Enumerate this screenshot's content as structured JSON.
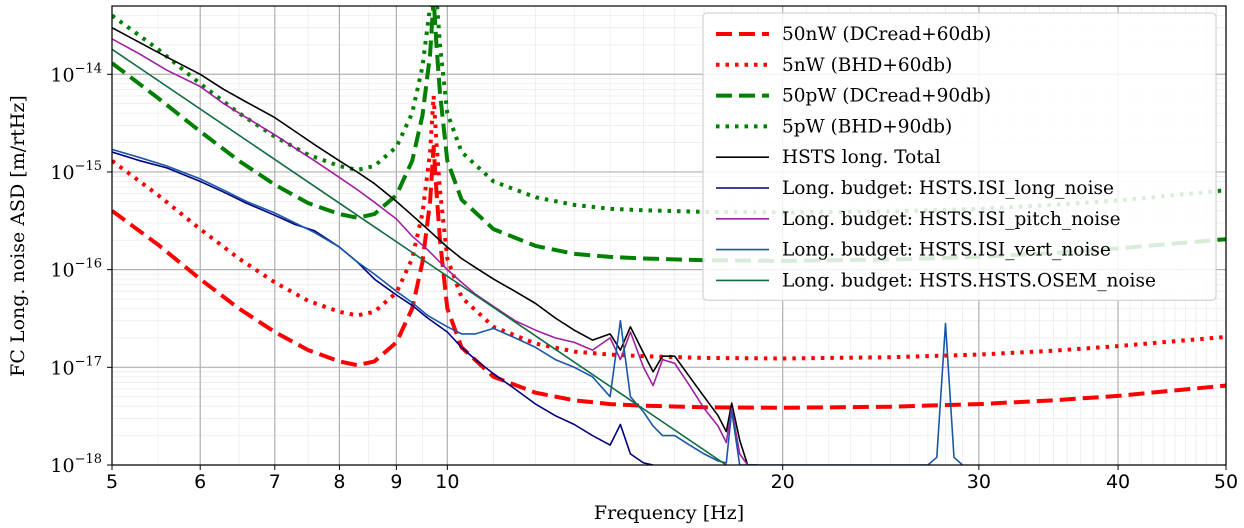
{
  "chart_data": {
    "type": "line",
    "xlabel": "Frequency [Hz]",
    "ylabel": "FC Long. noise ASD [m/rtHz]",
    "xscale": "log",
    "yscale": "log",
    "xlim": [
      5,
      50
    ],
    "ylim": [
      1e-18,
      5e-14
    ],
    "grid": true,
    "legend_position": "top-right",
    "x_ticks": [
      {
        "value": 5,
        "label": "5"
      },
      {
        "value": 6,
        "label": "6"
      },
      {
        "value": 7,
        "label": "7"
      },
      {
        "value": 8,
        "label": "8"
      },
      {
        "value": 9,
        "label": "9"
      },
      {
        "value": 10,
        "label": "10"
      },
      {
        "value": 20,
        "label": "20"
      },
      {
        "value": 30,
        "label": "30"
      },
      {
        "value": 40,
        "label": "40"
      },
      {
        "value": 50,
        "label": "50"
      }
    ],
    "y_ticks": [
      {
        "value": 1e-18,
        "base": "10",
        "exp": "−18"
      },
      {
        "value": 1e-17,
        "base": "10",
        "exp": "−17"
      },
      {
        "value": 1e-16,
        "base": "10",
        "exp": "−16"
      },
      {
        "value": 1e-15,
        "base": "10",
        "exp": "−15"
      },
      {
        "value": 1e-14,
        "base": "10",
        "exp": "−14"
      }
    ],
    "series": [
      {
        "name": "50nW (DCread+60db)",
        "color": "#ff0000",
        "style": "dashed",
        "width": 4,
        "x": [
          5,
          5.5,
          6,
          6.5,
          7,
          7.5,
          8,
          8.3,
          8.6,
          9,
          9.3,
          9.5,
          9.65,
          9.72,
          9.78,
          9.85,
          10,
          10.3,
          11,
          12,
          13,
          14,
          15,
          17,
          20,
          25,
          30,
          35,
          40,
          45,
          50
        ],
        "y": [
          4e-16,
          1.8e-16,
          8e-17,
          4e-17,
          2.3e-17,
          1.5e-17,
          1.15e-17,
          1.05e-17,
          1.15e-17,
          1.8e-17,
          4e-17,
          1.2e-16,
          5e-16,
          1.8e-15,
          6e-16,
          2e-16,
          4e-17,
          1.6e-17,
          8e-18,
          5.5e-18,
          4.6e-18,
          4.2e-18,
          4.05e-18,
          3.9e-18,
          3.85e-18,
          3.95e-18,
          4.2e-18,
          4.6e-18,
          5.1e-18,
          5.8e-18,
          6.5e-18
        ]
      },
      {
        "name": "5nW (BHD+60db)",
        "color": "#ff0000",
        "style": "dotted",
        "width": 4,
        "x": [
          5,
          5.5,
          6,
          6.5,
          7,
          7.5,
          8,
          8.3,
          8.6,
          9,
          9.3,
          9.5,
          9.65,
          9.72,
          9.78,
          9.85,
          10,
          10.3,
          11,
          12,
          13,
          14,
          15,
          17,
          20,
          25,
          30,
          35,
          40,
          45,
          50
        ],
        "y": [
          1.3e-15,
          5.8e-16,
          2.6e-16,
          1.3e-16,
          7.4e-17,
          4.8e-17,
          3.7e-17,
          3.4e-17,
          3.7e-17,
          5.8e-17,
          1.3e-16,
          3.8e-16,
          1.6e-15,
          6e-15,
          1.9e-15,
          6.4e-16,
          1.3e-16,
          5.2e-17,
          2.6e-17,
          1.75e-17,
          1.45e-17,
          1.35e-17,
          1.3e-17,
          1.25e-17,
          1.23e-17,
          1.27e-17,
          1.35e-17,
          1.48e-17,
          1.65e-17,
          1.85e-17,
          2.05e-17
        ]
      },
      {
        "name": "50pW (DCread+90db)",
        "color": "#008000",
        "style": "dashed",
        "width": 4,
        "x": [
          5,
          5.5,
          6,
          6.5,
          7,
          7.5,
          8,
          8.3,
          8.6,
          9,
          9.3,
          9.5,
          9.65,
          9.72,
          9.78,
          9.85,
          10,
          10.3,
          11,
          12,
          13,
          14,
          15,
          17,
          20,
          25,
          30,
          35,
          40,
          45,
          50
        ],
        "y": [
          1.3e-14,
          5.7e-15,
          2.6e-15,
          1.3e-15,
          7.4e-16,
          4.8e-16,
          3.7e-16,
          3.4e-16,
          3.7e-16,
          5.8e-16,
          1.3e-15,
          3.8e-15,
          1.6e-14,
          6e-14,
          1.9e-14,
          6.4e-15,
          1.3e-15,
          5.2e-16,
          2.6e-16,
          1.75e-16,
          1.45e-16,
          1.35e-16,
          1.3e-16,
          1.25e-16,
          1.23e-16,
          1.27e-16,
          1.35e-16,
          1.48e-16,
          1.65e-16,
          1.85e-16,
          2.05e-16
        ]
      },
      {
        "name": "5pW (BHD+90db)",
        "color": "#008000",
        "style": "dotted",
        "width": 4,
        "x": [
          5,
          5.5,
          6,
          6.5,
          7,
          7.5,
          8,
          8.3,
          8.6,
          9,
          9.3,
          9.5,
          9.65,
          9.72,
          9.78,
          9.85,
          10,
          10.3,
          11,
          12,
          13,
          14,
          15,
          17,
          20,
          25,
          30,
          35,
          40,
          45,
          50
        ],
        "y": [
          4e-14,
          1.8e-14,
          8e-15,
          4e-15,
          2.3e-15,
          1.5e-15,
          1.15e-15,
          1.05e-15,
          1.15e-15,
          1.8e-15,
          4e-15,
          1.2e-14,
          5e-14,
          1.9e-13,
          6e-14,
          2e-14,
          4e-15,
          1.6e-15,
          8e-16,
          5.5e-16,
          4.6e-16,
          4.2e-16,
          4.05e-16,
          3.9e-16,
          3.85e-16,
          3.95e-16,
          4.2e-16,
          4.6e-16,
          5.1e-16,
          5.8e-16,
          6.5e-16
        ]
      },
      {
        "name": "HSTS long. Total",
        "color": "#000000",
        "style": "solid",
        "width": 1.6,
        "x": [
          5,
          5.3,
          5.6,
          6,
          6.3,
          6.6,
          7,
          7.3,
          7.6,
          8,
          8.3,
          8.6,
          9,
          9.3,
          9.6,
          10,
          10.3,
          10.6,
          11,
          11.5,
          12,
          12.5,
          13,
          13.5,
          14,
          14.3,
          14.6,
          15,
          15.3,
          15.6,
          16,
          16.5,
          17,
          17.5,
          17.8,
          18,
          18.3,
          18.6,
          19
        ],
        "y": [
          3e-14,
          2.1e-14,
          1.5e-14,
          1e-14,
          7e-15,
          5.2e-15,
          3.6e-15,
          2.6e-15,
          1.9e-15,
          1.3e-15,
          1e-15,
          7.6e-16,
          5e-16,
          3.6e-16,
          2.6e-16,
          1.7e-16,
          1.3e-16,
          1.05e-16,
          8e-17,
          6e-17,
          4.5e-17,
          3.2e-17,
          2.4e-17,
          1.9e-17,
          2.2e-17,
          1.5e-17,
          2.6e-17,
          1.4e-17,
          9e-18,
          1.3e-17,
          1.3e-17,
          8e-18,
          5e-18,
          3.2e-18,
          2.2e-18,
          4.3e-18,
          1.8e-18,
          1e-18,
          1e-18
        ]
      },
      {
        "name": "Long. budget: HSTS.ISI_long_noise",
        "color": "#000080",
        "style": "solid",
        "width": 1.6,
        "x": [
          5,
          5.3,
          5.6,
          6,
          6.3,
          6.6,
          7,
          7.3,
          7.6,
          8,
          8.3,
          8.6,
          9,
          9.3,
          9.6,
          10,
          10.3,
          10.6,
          11,
          11.5,
          12,
          12.5,
          13,
          13.5,
          14,
          14.3,
          14.6,
          15,
          15.3
        ],
        "y": [
          1.6e-15,
          1.3e-15,
          1.1e-15,
          8e-16,
          6.2e-16,
          4.8e-16,
          3.6e-16,
          2.9e-16,
          2.5e-16,
          1.7e-16,
          1.2e-16,
          8e-17,
          5.5e-17,
          4.3e-17,
          3.2e-17,
          2.3e-17,
          1.6e-17,
          1.2e-17,
          8.6e-18,
          6e-18,
          4.2e-18,
          3.2e-18,
          2.6e-18,
          2e-18,
          1.6e-18,
          2.6e-18,
          1.3e-18,
          1.05e-18,
          1e-18
        ]
      },
      {
        "name": "Long. budget: HSTS.ISI_pitch_noise",
        "color": "#a020a0",
        "style": "solid",
        "width": 1.6,
        "x": [
          5,
          5.3,
          5.6,
          6,
          6.3,
          6.6,
          7,
          7.3,
          7.6,
          8,
          8.3,
          8.6,
          9,
          9.3,
          9.6,
          10,
          10.3,
          10.6,
          11,
          11.5,
          12,
          12.5,
          13,
          13.5,
          14,
          14.3,
          14.6,
          15,
          15.3,
          15.6,
          16,
          16.5,
          17,
          17.5,
          17.8,
          18,
          18.3,
          18.6
        ],
        "y": [
          2.3e-14,
          1.6e-14,
          1.1e-14,
          7.5e-15,
          5e-15,
          3.6e-15,
          2.4e-15,
          1.75e-15,
          1.3e-15,
          8.8e-16,
          6.6e-16,
          4.9e-16,
          3.3e-16,
          2.2e-16,
          1.6e-16,
          1e-16,
          7.4e-17,
          5.6e-17,
          4.2e-17,
          3e-17,
          2.4e-17,
          2e-17,
          1.8e-17,
          1.5e-17,
          2e-17,
          1.2e-17,
          2.3e-17,
          1e-17,
          6.5e-18,
          1.2e-17,
          1.1e-17,
          6.5e-18,
          3.8e-18,
          2.5e-18,
          1.7e-18,
          3.8e-18,
          1.3e-18,
          1e-18
        ]
      },
      {
        "name": "Long. budget: HSTS.ISI_vert_noise",
        "color": "#1a57a8",
        "style": "solid",
        "width": 1.6,
        "x": [
          5,
          5.3,
          5.6,
          6,
          6.3,
          6.6,
          7,
          7.3,
          7.6,
          8,
          8.3,
          8.6,
          9,
          9.3,
          9.6,
          10,
          10.3,
          10.6,
          11,
          11.5,
          12,
          12.5,
          13,
          13.5,
          14,
          14.3,
          14.6,
          15,
          15.3,
          15.6,
          16,
          16.5,
          17,
          17.5,
          17.8,
          18,
          18.3,
          18.6,
          19,
          20,
          22,
          25,
          27,
          27.5,
          28,
          28.5,
          29
        ],
        "y": [
          1.7e-15,
          1.4e-15,
          1.15e-15,
          8.5e-16,
          6.5e-16,
          5e-16,
          3.8e-16,
          3e-16,
          2.4e-16,
          1.7e-16,
          1.2e-16,
          9e-17,
          6e-17,
          4.6e-17,
          3.4e-17,
          2.6e-17,
          2.2e-17,
          2.2e-17,
          2.5e-17,
          2e-17,
          1.6e-17,
          1.2e-17,
          1e-17,
          8e-18,
          5e-18,
          3e-17,
          5e-18,
          3.5e-18,
          2.5e-18,
          2e-18,
          2e-18,
          1.6e-18,
          1.3e-18,
          1.1e-18,
          1.05e-18,
          3.6e-18,
          1e-18,
          1e-18,
          1e-18,
          1e-18,
          1e-18,
          1e-18,
          1e-18,
          1.2e-18,
          2.8e-17,
          1.2e-18,
          1e-18
        ]
      },
      {
        "name": "Long. budget: HSTS.HSTS.OSEM_noise",
        "color": "#116c43",
        "style": "solid",
        "width": 1.6,
        "x": [
          5,
          17.8
        ],
        "y": [
          1.8e-14,
          1e-18
        ]
      }
    ]
  }
}
